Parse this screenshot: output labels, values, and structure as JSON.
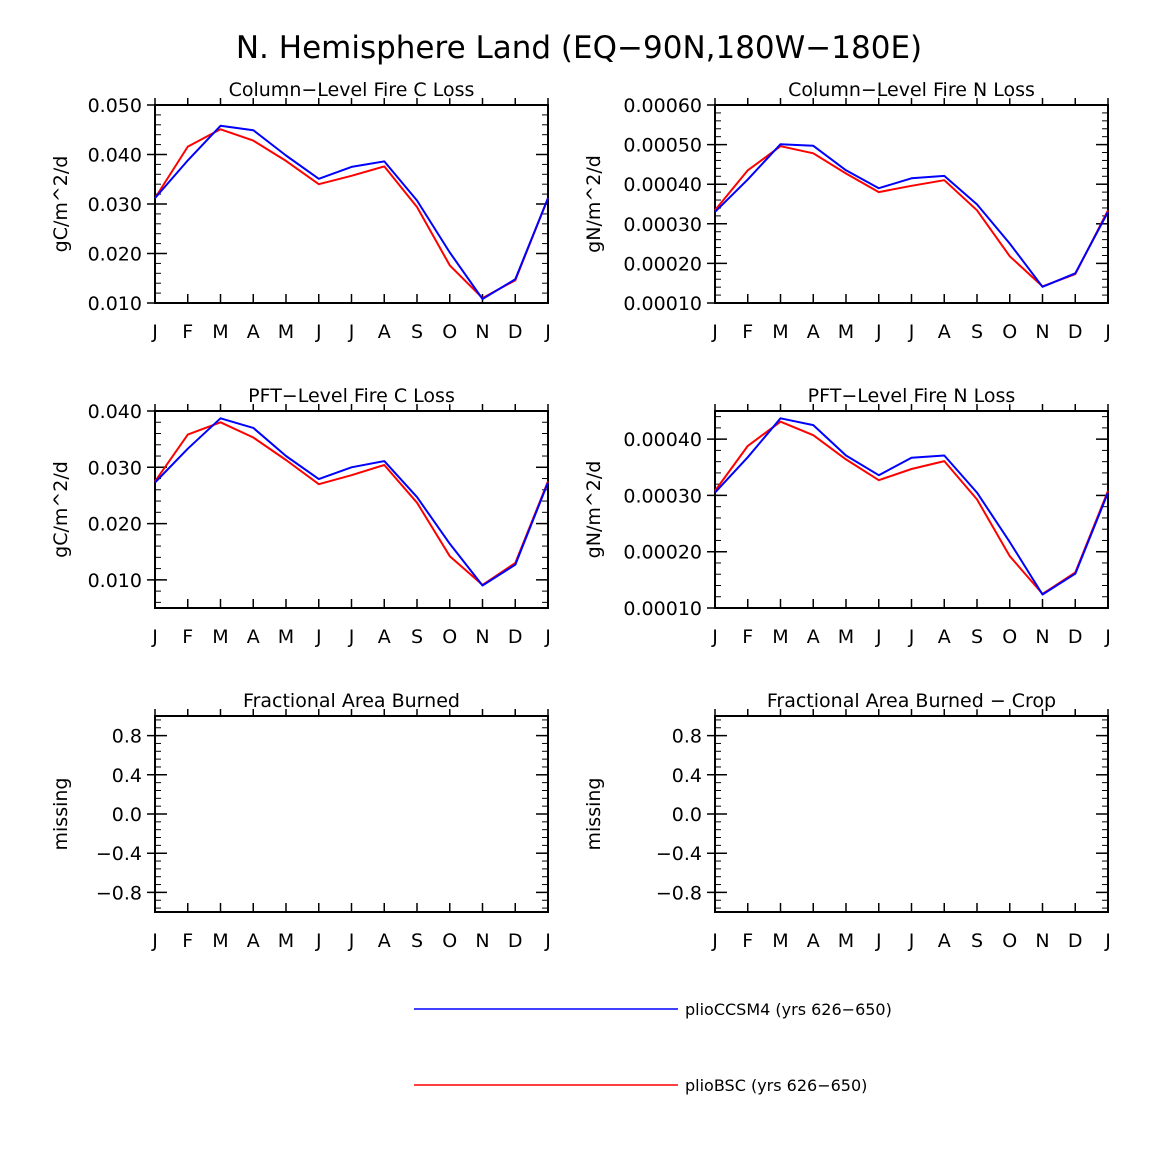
{
  "page_title": "N. Hemisphere Land (EQ−90N,180W−180E)",
  "colors": {
    "series1": "#0000ff",
    "series2": "#ff0000",
    "axis": "#000000"
  },
  "legend": [
    {
      "name": "plioCCSM4 (yrs 626−650)",
      "color": "#0000ff"
    },
    {
      "name": "plioBSC (yrs 626−650)",
      "color": "#ff0000"
    }
  ],
  "chart_data": [
    {
      "type": "line",
      "title": "Column−Level Fire C Loss",
      "ylabel": "gC/m^2/d",
      "categories": [
        "J",
        "F",
        "M",
        "A",
        "M",
        "J",
        "J",
        "A",
        "S",
        "O",
        "N",
        "D",
        "J"
      ],
      "ylim": [
        0.01,
        0.05
      ],
      "yticks": [
        0.01,
        0.02,
        0.03,
        0.04,
        0.05
      ],
      "yticklabels": [
        "0.010",
        "0.020",
        "0.030",
        "0.040",
        "0.050"
      ],
      "series": [
        {
          "name": "plioCCSM4 (yrs 626−650)",
          "values": [
            0.0312,
            0.0388,
            0.0458,
            0.0449,
            0.0398,
            0.0351,
            0.0375,
            0.0386,
            0.0307,
            0.0202,
            0.0108,
            0.0148,
            0.0312
          ]
        },
        {
          "name": "plioBSC (yrs 626−650)",
          "values": [
            0.0312,
            0.0416,
            0.0451,
            0.0428,
            0.0387,
            0.034,
            0.0357,
            0.0376,
            0.0294,
            0.0176,
            0.011,
            0.0146,
            0.0312
          ]
        }
      ]
    },
    {
      "type": "line",
      "title": "Column−Level Fire N Loss",
      "ylabel": "gN/m^2/d",
      "categories": [
        "J",
        "F",
        "M",
        "A",
        "M",
        "J",
        "J",
        "A",
        "S",
        "O",
        "N",
        "D",
        "J"
      ],
      "ylim": [
        0.0001,
        0.0006
      ],
      "yticks": [
        0.0001,
        0.0002,
        0.0003,
        0.0004,
        0.0005,
        0.0006
      ],
      "yticklabels": [
        "0.00010",
        "0.00020",
        "0.00030",
        "0.00040",
        "0.00050",
        "0.00060"
      ],
      "series": [
        {
          "name": "plioCCSM4 (yrs 626−650)",
          "values": [
            0.00033,
            0.000412,
            0.000501,
            0.000497,
            0.000435,
            0.00039,
            0.000415,
            0.000421,
            0.000349,
            0.00025,
            0.000141,
            0.000175,
            0.00033
          ]
        },
        {
          "name": "plioBSC (yrs 626−650)",
          "values": [
            0.000334,
            0.000435,
            0.000496,
            0.000478,
            0.000427,
            0.00038,
            0.000396,
            0.00041,
            0.000334,
            0.000218,
            0.000142,
            0.000173,
            0.000334
          ]
        }
      ]
    },
    {
      "type": "line",
      "title": "PFT−Level Fire C Loss",
      "ylabel": "gC/m^2/d",
      "categories": [
        "J",
        "F",
        "M",
        "A",
        "M",
        "J",
        "J",
        "A",
        "S",
        "O",
        "N",
        "D",
        "J"
      ],
      "ylim": [
        0.005,
        0.04
      ],
      "yticks": [
        0.01,
        0.02,
        0.03,
        0.04
      ],
      "yticklabels": [
        "0.010",
        "0.020",
        "0.030",
        "0.040"
      ],
      "series": [
        {
          "name": "plioCCSM4 (yrs 626−650)",
          "values": [
            0.0273,
            0.0333,
            0.0387,
            0.037,
            0.032,
            0.0279,
            0.03,
            0.0311,
            0.0247,
            0.0164,
            0.009,
            0.0127,
            0.0273
          ]
        },
        {
          "name": "plioBSC (yrs 626−650)",
          "values": [
            0.0275,
            0.0358,
            0.038,
            0.0353,
            0.0313,
            0.027,
            0.0286,
            0.0304,
            0.0237,
            0.0142,
            0.0091,
            0.013,
            0.0275
          ]
        }
      ]
    },
    {
      "type": "line",
      "title": "PFT−Level Fire N Loss",
      "ylabel": "gN/m^2/d",
      "categories": [
        "J",
        "F",
        "M",
        "A",
        "M",
        "J",
        "J",
        "A",
        "S",
        "O",
        "N",
        "D",
        "J"
      ],
      "ylim": [
        0.0001,
        0.00045
      ],
      "yticks": [
        0.0001,
        0.0002,
        0.0003,
        0.0004
      ],
      "yticklabels": [
        "0.00010",
        "0.00020",
        "0.00030",
        "0.00040"
      ],
      "series": [
        {
          "name": "plioCCSM4 (yrs 626−650)",
          "values": [
            0.000305,
            0.000368,
            0.000437,
            0.000425,
            0.000371,
            0.000336,
            0.000367,
            0.000371,
            0.000305,
            0.000217,
            0.000124,
            0.000161,
            0.000305
          ]
        },
        {
          "name": "plioBSC (yrs 626−650)",
          "values": [
            0.000308,
            0.000388,
            0.000431,
            0.000407,
            0.000364,
            0.000327,
            0.000347,
            0.000361,
            0.000293,
            0.000192,
            0.000125,
            0.000163,
            0.000308
          ]
        }
      ]
    },
    {
      "type": "line",
      "title": "Fractional Area Burned",
      "ylabel": "missing",
      "categories": [
        "J",
        "F",
        "M",
        "A",
        "M",
        "J",
        "J",
        "A",
        "S",
        "O",
        "N",
        "D",
        "J"
      ],
      "ylim": [
        -1.0,
        1.0
      ],
      "yticks": [
        -0.8,
        -0.4,
        0.0,
        0.4,
        0.8
      ],
      "yticklabels": [
        "−0.8",
        "−0.4",
        "0.0",
        "0.4",
        "0.8"
      ],
      "series": []
    },
    {
      "type": "line",
      "title": "Fractional Area Burned − Crop",
      "ylabel": "missing",
      "categories": [
        "J",
        "F",
        "M",
        "A",
        "M",
        "J",
        "J",
        "A",
        "S",
        "O",
        "N",
        "D",
        "J"
      ],
      "ylim": [
        -1.0,
        1.0
      ],
      "yticks": [
        -0.8,
        -0.4,
        0.0,
        0.4,
        0.8
      ],
      "yticklabels": [
        "−0.8",
        "−0.4",
        "0.0",
        "0.4",
        "0.8"
      ],
      "series": []
    }
  ]
}
